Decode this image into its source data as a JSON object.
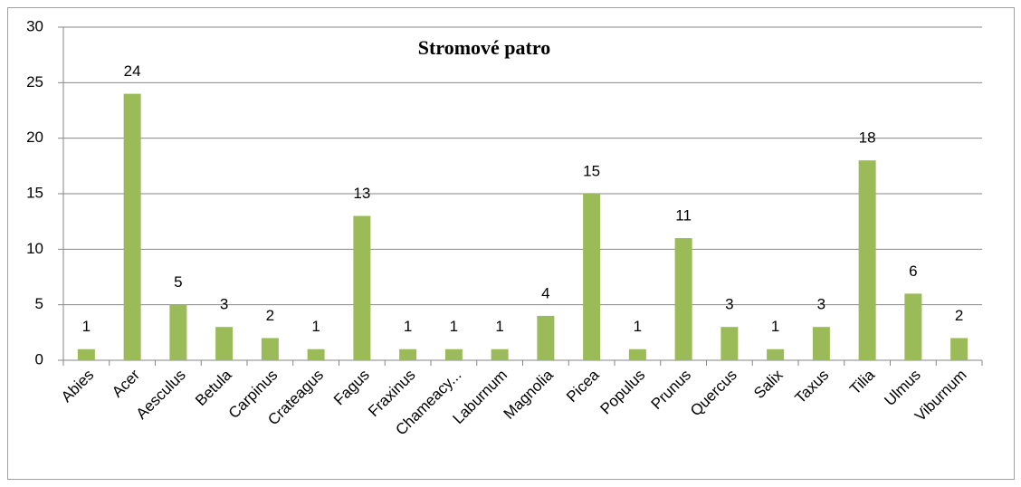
{
  "chart_data": {
    "type": "bar",
    "title": "Stromové patro",
    "categories": [
      "Abies",
      "Acer",
      "Aesculus",
      "Betula",
      "Carpinus",
      "Crateagus",
      "Fagus",
      "Fraxinus",
      "Chameacy...",
      "Laburnum",
      "Magnolia",
      "Picea",
      "Populus",
      "Prunus",
      "Quercus",
      "Salix",
      "Taxus",
      "Tilia",
      "Ulmus",
      "Viburnum"
    ],
    "values": [
      1,
      24,
      5,
      3,
      2,
      1,
      13,
      1,
      1,
      1,
      4,
      15,
      1,
      11,
      3,
      1,
      3,
      18,
      6,
      2
    ],
    "color": "#9bbb59",
    "ylim": [
      0,
      30
    ],
    "yticks": [
      0,
      5,
      10,
      15,
      20,
      25,
      30
    ],
    "grid": true
  }
}
